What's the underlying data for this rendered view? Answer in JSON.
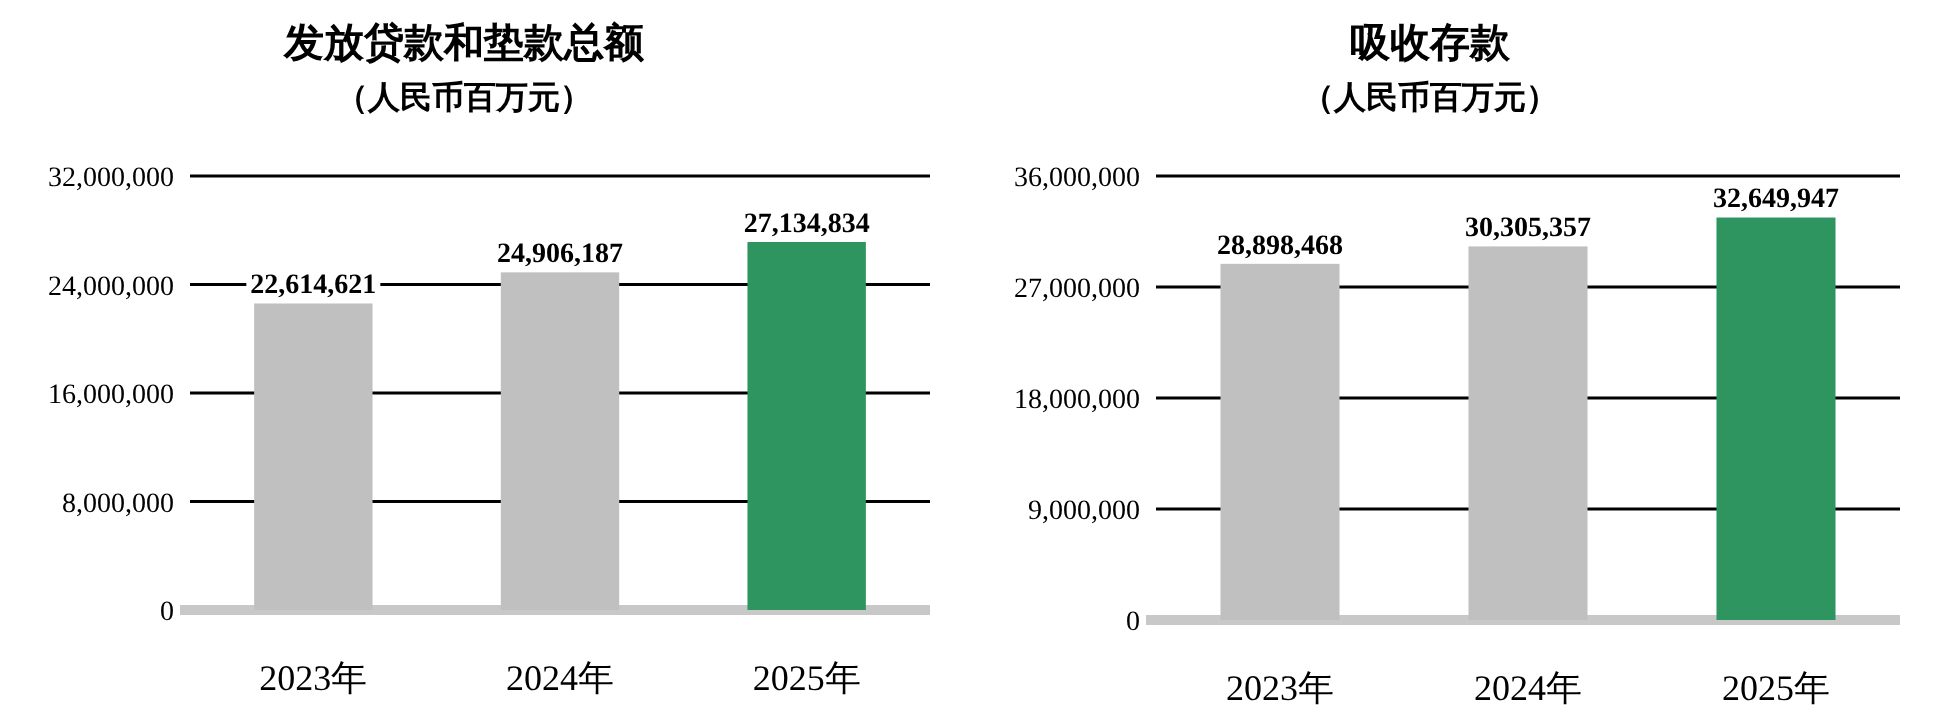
{
  "chart_data": [
    {
      "type": "bar",
      "title": "发放贷款和垫款总额",
      "subtitle": "（人民币百万元）",
      "categories": [
        "2023年",
        "2024年",
        "2025年"
      ],
      "values": [
        22614621,
        24906187,
        27134834
      ],
      "colors": [
        "#c0c0c0",
        "#c0c0c0",
        "#2e9460"
      ],
      "value_labels": [
        "22,614,621",
        "24,906,187",
        "27,134,834"
      ],
      "ylim": [
        0,
        32000000
      ],
      "yticks": [
        0,
        {
          "value": 8000000,
          "label": "8,000,000"
        },
        {
          "value": 16000000,
          "label": "16,000,000"
        },
        {
          "value": 24000000,
          "label": "24,000,000"
        },
        {
          "value": 32000000,
          "label": "32,000,000"
        }
      ],
      "grid": "y"
    },
    {
      "type": "bar",
      "title": "吸收存款",
      "subtitle": "（人民币百万元）",
      "categories": [
        "2023年",
        "2024年",
        "2025年"
      ],
      "values": [
        28898468,
        30305357,
        32649947
      ],
      "colors": [
        "#c0c0c0",
        "#c0c0c0",
        "#2e9460"
      ],
      "value_labels": [
        "28,898,468",
        "30,305,357",
        "32,649,947"
      ],
      "ylim": [
        0,
        36000000
      ],
      "yticks": [
        0,
        {
          "value": 9000000,
          "label": "9,000,000"
        },
        {
          "value": 18000000,
          "label": "18,000,000"
        },
        {
          "value": 27000000,
          "label": "27,000,000"
        },
        {
          "value": 36000000,
          "label": "36,000,000"
        }
      ],
      "grid": "y"
    }
  ]
}
